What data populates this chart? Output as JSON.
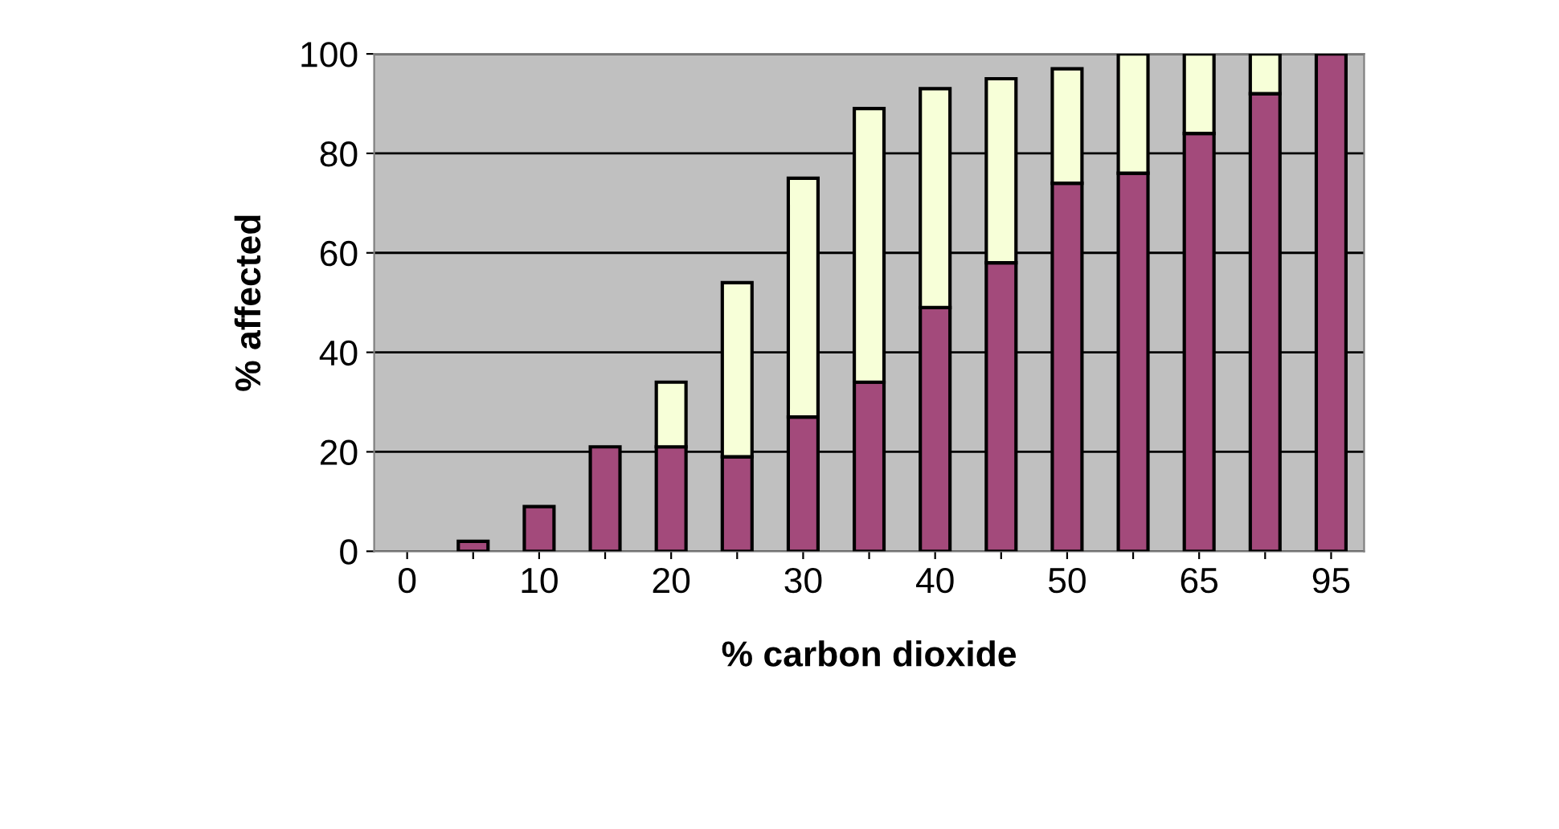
{
  "chart_data": {
    "type": "bar",
    "stacked": true,
    "xlabel": "% carbon dioxide",
    "ylabel": "% affected",
    "categories": [
      "0",
      null,
      "10",
      null,
      "20",
      null,
      "30",
      null,
      "40",
      null,
      "50",
      null,
      "65",
      null,
      "95"
    ],
    "series": [
      {
        "color": "#a34a7b",
        "values": [
          0,
          2,
          9,
          21,
          21,
          19,
          27,
          34,
          49,
          58,
          74,
          76,
          84,
          92,
          100
        ]
      },
      {
        "color": "#f7ffd8",
        "values": [
          0,
          0,
          0,
          0,
          13,
          35,
          48,
          55,
          44,
          37,
          23,
          24,
          16,
          8,
          0
        ]
      }
    ],
    "ylim": [
      0,
      100
    ],
    "yticks": [
      0,
      20,
      40,
      60,
      80,
      100
    ],
    "grid": "y",
    "legend": false
  }
}
